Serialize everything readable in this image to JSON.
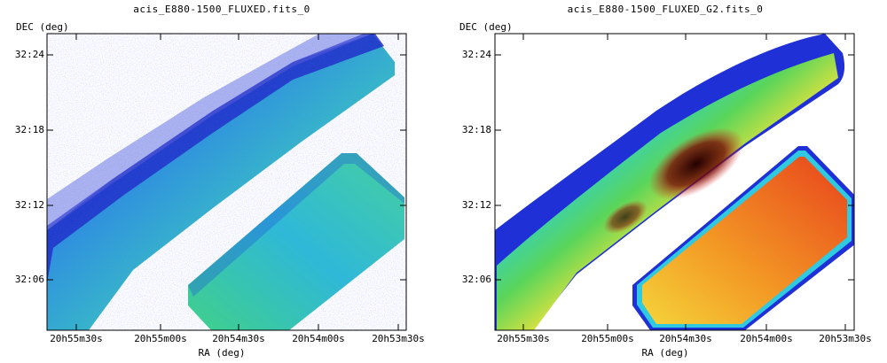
{
  "panels": [
    {
      "title": "acis_E880-1500_FLUXED.fits_0",
      "ylabel": "DEC (deg)",
      "xlabel": "RA (deg)",
      "yticks": [
        "32:24",
        "32:18",
        "32:12",
        "32:06"
      ],
      "xticks": [
        "20h55m30s",
        "20h55m00s",
        "20h54m30s",
        "20h54m00s",
        "20h53m30s"
      ],
      "style": "pixel-noise"
    },
    {
      "title": "acis_E880-1500_FLUXED_G2.fits_0",
      "ylabel": "DEC (deg)",
      "xlabel": "RA (deg)",
      "yticks": [
        "32:24",
        "32:18",
        "32:12",
        "32:06"
      ],
      "xticks": [
        "20h55m30s",
        "20h55m00s",
        "20h54m30s",
        "20h54m00s",
        "20h53m30s"
      ],
      "style": "smoothed"
    }
  ],
  "colors": {
    "blue": "#1d2fd8",
    "cyan": "#29c7e6",
    "green": "#57d66b",
    "yellow": "#f1e43b",
    "orange": "#f38b22",
    "red": "#e2261b",
    "black": "#1b0000"
  }
}
